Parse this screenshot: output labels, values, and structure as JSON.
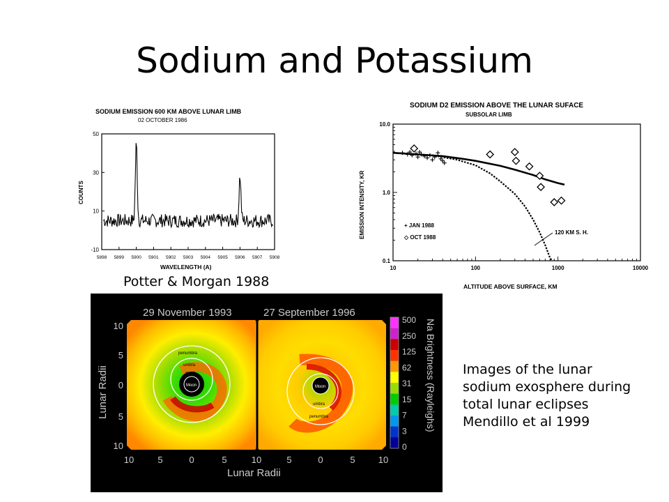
{
  "slide": {
    "title": "Sodium and Potassium"
  },
  "figure_left": {
    "title": "SODIUM EMISSION 600 KM ABOVE LUNAR LIMB",
    "subtitle": "02 OCTOBER 1986"
  },
  "figure_right": {
    "title": "SODIUM D2 EMISSION ABOVE THE LUNAR SUFACE",
    "subtitle": "SUBSOLAR LIMB",
    "legend_jan": "+ JAN 1988",
    "legend_oct": "◇ OCT 1988",
    "annotation": "120 KM S. H."
  },
  "captions": {
    "potter": "Potter & Morgan 1988",
    "eclipse_lines": [
      "Images of the lunar",
      "sodium exosphere during",
      "total lunar eclipses",
      "Mendillo et al 1999"
    ]
  },
  "eclipse_image": {
    "left_date": "29 November 1993",
    "right_date": "27 September 1996",
    "y_label": "Lunar Radii",
    "x_label": "Lunar Radii",
    "colorbar_label": "Na Brightness (Rayleighs)",
    "colorbar_ticks": [
      "500",
      "250",
      "125",
      "62",
      "31",
      "15",
      "7",
      "3",
      "0"
    ],
    "y_ticks": [
      "10",
      "5",
      "0",
      "5",
      "10"
    ],
    "x_ticks": [
      "10",
      "5",
      "0",
      "5",
      "10",
      "5",
      "0",
      "5",
      "10"
    ],
    "left_labels": {
      "penumbra": "penumbra",
      "umbra": "umbra",
      "mask": "mask",
      "moon": "Moon"
    },
    "right_labels": {
      "moon": "Moon",
      "umbra": "umbra",
      "penumbra": "penumbra"
    },
    "colorbar_colors": [
      "#ff33ff",
      "#cc22cc",
      "#cc0000",
      "#ff3300",
      "#ff9900",
      "#ffff00",
      "#99dd00",
      "#00cc00",
      "#00ccaa",
      "#0099ee",
      "#0033cc",
      "#000099"
    ]
  },
  "chart_data": [
    {
      "type": "line",
      "title": "SODIUM EMISSION 600 KM ABOVE LUNAR LIMB",
      "subtitle": "02 OCTOBER 1986",
      "xlabel": "WAVELENGTH (A)",
      "ylabel": "COUNTS",
      "xlim": [
        5898,
        5908
      ],
      "ylim": [
        -10,
        50
      ],
      "x_ticks": [
        "5898",
        "5899",
        "5900",
        "5901",
        "5902",
        "5903",
        "5904",
        "5905",
        "5906",
        "5907",
        "5908"
      ],
      "y_ticks": [
        -10,
        10,
        30,
        50
      ],
      "peaks": [
        {
          "x": 5900.0,
          "y": 45
        },
        {
          "x": 5906.0,
          "y": 28
        }
      ],
      "baseline": 5
    },
    {
      "type": "scatter",
      "title": "SODIUM D2 EMISSION ABOVE THE LUNAR SUFACE",
      "subtitle": "SUBSOLAR LIMB",
      "xlabel": "ALTITUDE ABOVE SURFACE, KM",
      "ylabel": "EMISSION INTENSITY, KR",
      "x_scale": "log",
      "y_scale": "log",
      "xlim": [
        10,
        10000
      ],
      "ylim": [
        0.1,
        10
      ],
      "x_ticks": [
        "10",
        "100",
        "1000",
        "10000"
      ],
      "y_ticks": [
        "0.1",
        "1.0",
        "10.0"
      ],
      "series": [
        {
          "name": "JAN 1988",
          "marker": "+",
          "x": [
            13,
            15,
            16,
            17,
            18,
            19,
            20,
            21,
            22,
            24,
            26,
            28,
            30,
            32,
            35,
            38,
            40,
            42
          ],
          "y": [
            3.8,
            3.6,
            3.9,
            3.5,
            4.2,
            3.7,
            3.3,
            3.9,
            3.6,
            3.4,
            3.2,
            3.5,
            3.0,
            3.3,
            3.8,
            3.1,
            2.9,
            2.7
          ]
        },
        {
          "name": "OCT 1988",
          "marker": "diamond",
          "x": [
            18,
            150,
            300,
            310,
            450,
            600,
            620,
            900,
            1100
          ],
          "y": [
            4.4,
            3.6,
            3.9,
            2.9,
            2.4,
            1.75,
            1.2,
            0.72,
            0.76
          ]
        }
      ],
      "curves": [
        {
          "style": "solid",
          "x": [
            10,
            20,
            40,
            70,
            100,
            200,
            300,
            500,
            700,
            1000,
            1200
          ],
          "y": [
            3.8,
            3.6,
            3.4,
            3.1,
            2.9,
            2.45,
            2.15,
            1.8,
            1.55,
            1.37,
            1.3
          ]
        },
        {
          "style": "dashed",
          "label": "120 KM S. H.",
          "x": [
            10,
            30,
            60,
            100,
            150,
            200,
            300,
            400,
            500,
            600,
            700,
            800,
            850
          ],
          "y": [
            3.8,
            3.5,
            3.0,
            2.5,
            1.9,
            1.45,
            0.95,
            0.62,
            0.4,
            0.26,
            0.17,
            0.11,
            0.1
          ]
        }
      ]
    }
  ]
}
